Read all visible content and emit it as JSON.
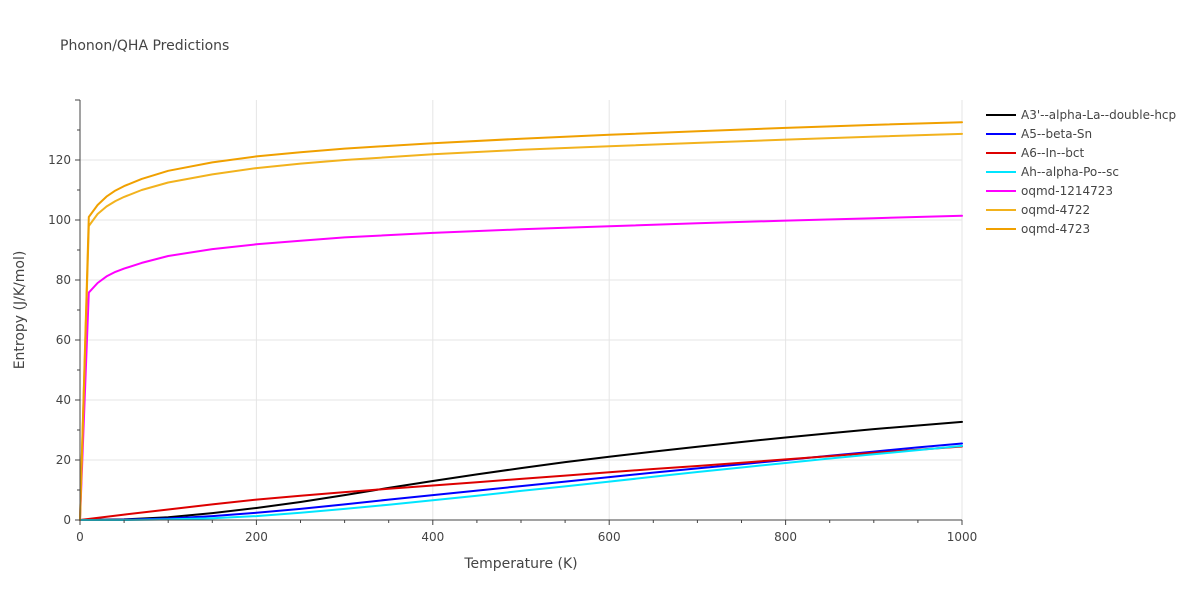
{
  "chart_data": {
    "type": "line",
    "title": "Phonon/QHA Predictions",
    "xlabel": "Temperature (K)",
    "ylabel": "Entropy (J/K/mol)",
    "xlim": [
      0,
      1000
    ],
    "ylim": [
      0,
      140
    ],
    "xticks": [
      0,
      200,
      400,
      600,
      800,
      1000
    ],
    "yticks": [
      0,
      20,
      40,
      60,
      80,
      100,
      120
    ],
    "xtick_labels": [
      "0",
      "200",
      "400",
      "600",
      "800",
      "1000"
    ],
    "ytick_labels": [
      "0",
      "20",
      "40",
      "60",
      "80",
      "100",
      "120"
    ],
    "grid": true,
    "legend_position": "top-right",
    "series": [
      {
        "name": "A3'--alpha-La--double-hcp",
        "color": "#000000",
        "x": [
          0,
          50,
          100,
          150,
          200,
          250,
          300,
          350,
          400,
          450,
          500,
          550,
          600,
          650,
          700,
          750,
          800,
          850,
          900,
          950,
          1000
        ],
        "y": [
          0,
          0.2,
          0.9,
          2.3,
          4.0,
          6.0,
          8.3,
          10.7,
          13.0,
          15.2,
          17.3,
          19.3,
          21.1,
          22.8,
          24.4,
          26.0,
          27.5,
          28.9,
          30.3,
          31.5,
          32.7
        ]
      },
      {
        "name": "A5--beta-Sn",
        "color": "#0000ff",
        "x": [
          0,
          50,
          100,
          150,
          200,
          250,
          300,
          350,
          400,
          450,
          500,
          550,
          600,
          650,
          700,
          750,
          800,
          850,
          900,
          950,
          1000
        ],
        "y": [
          0,
          0.1,
          0.5,
          1.3,
          2.4,
          3.7,
          5.2,
          6.8,
          8.3,
          9.8,
          11.3,
          12.8,
          14.3,
          15.8,
          17.2,
          18.6,
          20.0,
          21.4,
          22.8,
          24.2,
          25.5
        ]
      },
      {
        "name": "A6--In--bct",
        "color": "#dd0000",
        "x": [
          0,
          50,
          100,
          150,
          200,
          250,
          300,
          350,
          400,
          450,
          500,
          550,
          600,
          650,
          700,
          750,
          800,
          850,
          900,
          950,
          1000
        ],
        "y": [
          0,
          1.8,
          3.5,
          5.2,
          6.8,
          8.1,
          9.3,
          10.4,
          11.5,
          12.6,
          13.7,
          14.8,
          15.9,
          17.0,
          18.0,
          19.1,
          20.2,
          21.3,
          22.4,
          23.4,
          24.5
        ]
      },
      {
        "name": "Ah--alpha-Po--sc",
        "color": "#00e5ff",
        "x": [
          0,
          50,
          100,
          150,
          200,
          250,
          300,
          350,
          400,
          450,
          500,
          550,
          600,
          650,
          700,
          750,
          800,
          850,
          900,
          950,
          1000
        ],
        "y": [
          0,
          0.0,
          0.2,
          0.6,
          1.3,
          2.4,
          3.7,
          5.1,
          6.6,
          8.1,
          9.7,
          11.2,
          12.8,
          14.4,
          16.0,
          17.5,
          19.0,
          20.5,
          21.9,
          23.3,
          24.7
        ]
      },
      {
        "name": "oqmd-1214723",
        "color": "#ff00ff",
        "x": [
          0,
          10,
          20,
          30,
          40,
          50,
          70,
          100,
          150,
          200,
          250,
          300,
          400,
          500,
          600,
          700,
          800,
          900,
          1000
        ],
        "y": [
          0,
          75.8,
          79.0,
          81.2,
          82.7,
          83.8,
          85.7,
          88.0,
          90.3,
          91.9,
          93.1,
          94.2,
          95.7,
          96.9,
          97.9,
          98.9,
          99.8,
          100.6,
          101.4
        ]
      },
      {
        "name": "oqmd-4722",
        "color": "#f2b21d",
        "x": [
          0,
          10,
          20,
          30,
          40,
          50,
          70,
          100,
          150,
          200,
          250,
          300,
          400,
          500,
          600,
          700,
          800,
          900,
          1000
        ],
        "y": [
          0,
          98.0,
          102.0,
          104.5,
          106.3,
          107.7,
          110.0,
          112.5,
          115.2,
          117.3,
          118.8,
          120.0,
          121.9,
          123.4,
          124.6,
          125.7,
          126.8,
          127.8,
          128.7
        ]
      },
      {
        "name": "oqmd-4723",
        "color": "#f0a000",
        "x": [
          0,
          10,
          20,
          30,
          40,
          50,
          70,
          100,
          150,
          200,
          250,
          300,
          400,
          500,
          600,
          700,
          800,
          900,
          1000
        ],
        "y": [
          0,
          101.0,
          105.0,
          107.8,
          109.8,
          111.3,
          113.7,
          116.4,
          119.2,
          121.2,
          122.6,
          123.8,
          125.6,
          127.1,
          128.4,
          129.6,
          130.7,
          131.7,
          132.6
        ]
      }
    ]
  }
}
